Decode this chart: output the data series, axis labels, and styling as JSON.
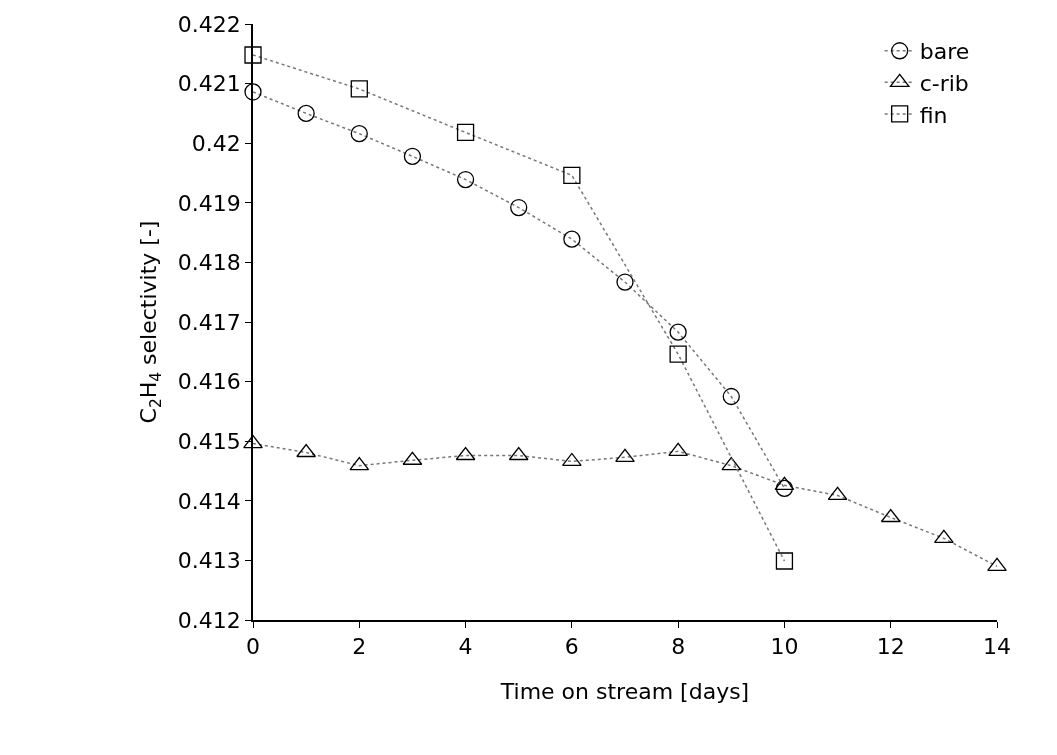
{
  "chart_data": {
    "type": "line",
    "xlabel": "Time on stream [days]",
    "ylabel": "C$_{2}$H$_{4}$ selectivity [-]",
    "xlim": [
      0,
      14
    ],
    "xticks": [
      0,
      2,
      4,
      6,
      8,
      10,
      12,
      14
    ],
    "ylim": [
      0.412,
      0.422
    ],
    "yticks": [
      0.412,
      0.413,
      0.414,
      0.415,
      0.416,
      0.417,
      0.418,
      0.419,
      0.42,
      0.421,
      0.422
    ],
    "legend": "top right",
    "line_style": "dotted",
    "series": [
      {
        "name": "bare",
        "color": "#000000",
        "marker": "circle",
        "x": [
          0,
          1,
          2,
          3,
          4,
          5,
          6,
          7,
          8,
          9,
          10
        ],
        "values": [
          0.42086,
          0.4205,
          0.42016,
          0.41978,
          0.41939,
          0.41892,
          0.41839,
          0.41767,
          0.41683,
          0.41575,
          0.41421
        ]
      },
      {
        "name": "c-rib",
        "color": "#000000",
        "marker": "triangle",
        "x": [
          0,
          1,
          2,
          3,
          4,
          5,
          6,
          7,
          8,
          9,
          10,
          11,
          12,
          13,
          14
        ],
        "values": [
          0.41496,
          0.41481,
          0.41459,
          0.41468,
          0.41476,
          0.41476,
          0.41466,
          0.41473,
          0.41483,
          0.41459,
          0.41426,
          0.41409,
          0.41372,
          0.41337,
          0.4129
        ]
      },
      {
        "name": "fin",
        "color": "#000000",
        "marker": "square",
        "x": [
          0,
          2,
          4,
          6,
          8,
          10
        ],
        "values": [
          0.42148,
          0.42091,
          0.42018,
          0.41946,
          0.41646,
          0.41299
        ]
      }
    ]
  }
}
